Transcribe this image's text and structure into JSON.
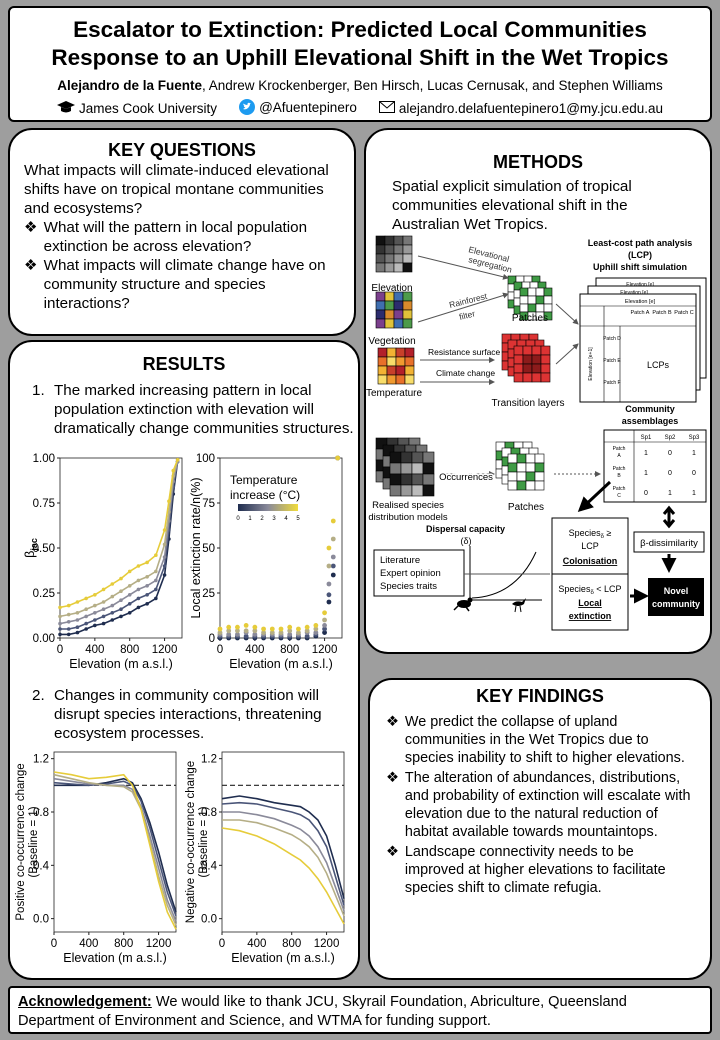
{
  "header": {
    "title_line1": "Escalator to Extinction: Predicted Local Communities",
    "title_line2": "Response to an Uphill Elevational Shift in the Wet Tropics",
    "lead_author": "Alejandro de la Fuente",
    "coauthors": ", Andrew Krockenberger, Ben Hirsch, Lucas Cernusak, and Stephen Williams",
    "university": "James Cook University",
    "twitter": "@Afuentepinero",
    "email": "alejandro.delafuentepinero1@my.jcu.edu.au",
    "icons": [
      "graduation-cap-icon",
      "twitter-bird-icon",
      "envelope-icon"
    ]
  },
  "key_questions": {
    "title": "KEY QUESTIONS",
    "intro": "What impacts will climate-induced elevational shifts have on tropical montane communities and ecosystems?",
    "bullets": [
      "What will the pattern in local population extinction be across elevation?",
      "What impacts will climate change have on community structure and species interactions?"
    ]
  },
  "results": {
    "title": "RESULTS",
    "item1_num": "1.",
    "item1_text": "The marked increasing pattern in local population extinction with elevation will dramatically change communities structures.",
    "item2_num": "2.",
    "item2_text": "Changes in community composition will disrupt species interactions, threatening ecosystem processes."
  },
  "methods": {
    "title": "METHODS",
    "intro": "Spatial explicit simulation of tropical communities elevational shift in the Australian Wet Tropics.",
    "labels": {
      "elevation": "Elevation",
      "vegetation": "Vegetation",
      "temperature": "Temperature",
      "elev_seg_1": "Elevational",
      "elev_seg_2": "segregation",
      "rainforest_1": "Rainforest",
      "rainforest_2": "filter",
      "resistance": "Resistance surface",
      "climate_change": "Climate change",
      "patches": "Patches",
      "transition_layers": "Transition layers",
      "lcp_title_1": "Least-cost path analysis",
      "lcp_title_2": "(LCP)",
      "lcp_title_3": "Uphill shift simulation",
      "elev_e": "Elevation [e]",
      "elev_e1": "Elevation [e+1]",
      "patch_a": "Patch A",
      "patch_b": "Patch B",
      "patch_c": "Patch C",
      "patch_d": "Patch D",
      "patch_e": "Patch E",
      "patch_f": "Patch F",
      "lcps": "LCPs",
      "realised_1": "Realised species",
      "realised_2": "distribution models",
      "occurrences": "Occurrences",
      "patches2": "Patches",
      "comm_1": "Community",
      "comm_2": "assemblages",
      "sp1": "Sp1",
      "sp2": "Sp2",
      "sp3": "Sp3",
      "dispersal": "Dispersal capacity",
      "delta": "(δ)",
      "lit_1": "Literature",
      "lit_2": "Expert opinion",
      "lit_3": "Species traits",
      "col_1": "Species",
      "col_1b": " ≥",
      "col_2": "LCP",
      "col_3": "Colonisation",
      "ext_1": "Species",
      "ext_1b": " < LCP",
      "ext_2": "Local",
      "ext_3": "extinction",
      "sub_delta": "δ",
      "beta": "β-dissimilarity",
      "novel_1": "Novel",
      "novel_2": "community"
    },
    "matrix": [
      [
        "1",
        "0",
        "1"
      ],
      [
        "1",
        "0",
        "0"
      ],
      [
        "0",
        "1",
        "1"
      ]
    ]
  },
  "key_findings": {
    "title": "KEY FINDINGS",
    "bullets": [
      "We predict the collapse of upland communities in the Wet Tropics due to species inability to shift to higher elevations.",
      "The alteration of abundances, distributions, and probability of extinction will escalate with elevation due to the natural reduction of habitat available towards mountaintops.",
      "Landscape connectivity needs to be improved at higher elevations to facilitate species shift to climate refugia."
    ]
  },
  "acknowledgement": {
    "label": "Acknowledgement:",
    "text": " We would like to thank JCU, Skyrail Foundation, Abriculture, Queensland Department of Environment and Science, and WTMA for funding support."
  },
  "chart_data": [
    {
      "type": "line",
      "ylabel": "βjac",
      "xlabel": "Elevation (m a.s.l.)",
      "xlim": [
        0,
        1400
      ],
      "ylim": [
        0,
        1
      ],
      "x_ticks": [
        "0",
        "400",
        "800",
        "1200"
      ],
      "y_ticks": [
        "0.00",
        "0.25",
        "0.50",
        "0.75",
        "1.00"
      ],
      "x": [
        0,
        100,
        200,
        300,
        400,
        500,
        600,
        700,
        800,
        900,
        1000,
        1100,
        1200,
        1250,
        1300,
        1350
      ],
      "series": [
        {
          "color": "#1f2d4f",
          "values": [
            0.02,
            0.02,
            0.03,
            0.05,
            0.07,
            0.08,
            0.1,
            0.12,
            0.14,
            0.17,
            0.19,
            0.22,
            0.35,
            0.55,
            0.8,
            0.98
          ]
        },
        {
          "color": "#4a5578",
          "values": [
            0.05,
            0.05,
            0.06,
            0.08,
            0.1,
            0.12,
            0.14,
            0.16,
            0.19,
            0.22,
            0.24,
            0.27,
            0.4,
            0.6,
            0.84,
            0.98
          ]
        },
        {
          "color": "#8a8a9a",
          "values": [
            0.08,
            0.09,
            0.1,
            0.12,
            0.14,
            0.16,
            0.18,
            0.21,
            0.24,
            0.27,
            0.29,
            0.32,
            0.45,
            0.65,
            0.87,
            0.98
          ]
        },
        {
          "color": "#b5ae86",
          "values": [
            0.12,
            0.13,
            0.14,
            0.16,
            0.18,
            0.2,
            0.23,
            0.26,
            0.29,
            0.32,
            0.34,
            0.37,
            0.52,
            0.7,
            0.9,
            0.99
          ]
        },
        {
          "color": "#e6cc3a",
          "values": [
            0.17,
            0.18,
            0.2,
            0.22,
            0.24,
            0.27,
            0.3,
            0.33,
            0.37,
            0.4,
            0.42,
            0.46,
            0.6,
            0.76,
            0.93,
            0.99
          ]
        }
      ],
      "legend_title": "Temperature increase (°C)",
      "legend_ticks": [
        "0",
        "1",
        "2",
        "3",
        "4",
        "5"
      ]
    },
    {
      "type": "scatter",
      "ylabel": "Local extinction rate/n(%)",
      "xlabel": "Elevation (m a.s.l.)",
      "xlim": [
        0,
        1400
      ],
      "ylim": [
        0,
        100
      ],
      "x_ticks": [
        "0",
        "400",
        "800",
        "1200"
      ],
      "y_ticks": [
        "0",
        "25",
        "50",
        "75",
        "100"
      ],
      "x": [
        0,
        100,
        200,
        300,
        400,
        500,
        600,
        700,
        800,
        900,
        1000,
        1100,
        1200,
        1250,
        1300,
        1350
      ],
      "series": [
        {
          "color": "#1f2d4f",
          "values": [
            0,
            0,
            0,
            0,
            0,
            0,
            0,
            0,
            0,
            0,
            0,
            1,
            3,
            20,
            35,
            100
          ]
        },
        {
          "color": "#4a5578",
          "values": [
            1,
            1,
            1,
            1,
            1,
            1,
            1,
            1,
            1,
            1,
            1,
            2,
            5,
            24,
            40,
            100
          ]
        },
        {
          "color": "#8a8a9a",
          "values": [
            2,
            2,
            2,
            3,
            2,
            2,
            2,
            2,
            2,
            2,
            3,
            3,
            7,
            30,
            45,
            100
          ]
        },
        {
          "color": "#b5ae86",
          "values": [
            3,
            4,
            4,
            4,
            4,
            3,
            3,
            3,
            4,
            3,
            4,
            5,
            10,
            40,
            55,
            100
          ]
        },
        {
          "color": "#e6cc3a",
          "values": [
            5,
            6,
            6,
            7,
            6,
            5,
            5,
            5,
            6,
            5,
            6,
            7,
            14,
            50,
            65,
            100
          ]
        }
      ]
    },
    {
      "type": "line",
      "ylabel": "Positive co-occurrence change (Baseline = 1)",
      "xlabel": "Elevation (m a.s.l.)",
      "xlim": [
        0,
        1400
      ],
      "ylim": [
        -0.1,
        1.25
      ],
      "baseline": 1,
      "x_ticks": [
        "0",
        "400",
        "800",
        "1200"
      ],
      "y_ticks": [
        "0.0",
        "0.4",
        "0.8",
        "1.2"
      ],
      "x": [
        0,
        200,
        400,
        600,
        800,
        900,
        1000,
        1100,
        1200,
        1300,
        1400
      ],
      "series": [
        {
          "color": "#1f2d4f",
          "values": [
            1.0,
            1.0,
            1.0,
            1.02,
            1.05,
            1.02,
            0.9,
            0.72,
            0.5,
            0.25,
            0.05
          ]
        },
        {
          "color": "#4a5578",
          "values": [
            1.02,
            1.01,
            1.0,
            1.01,
            1.03,
            1.0,
            0.88,
            0.68,
            0.44,
            0.2,
            0.02
          ]
        },
        {
          "color": "#8a8a9a",
          "values": [
            1.05,
            1.03,
            1.01,
            1.0,
            1.0,
            0.97,
            0.84,
            0.62,
            0.38,
            0.14,
            -0.02
          ]
        },
        {
          "color": "#b5ae86",
          "values": [
            1.08,
            1.05,
            1.02,
            1.0,
            0.99,
            0.95,
            0.82,
            0.58,
            0.32,
            0.1,
            -0.05
          ]
        },
        {
          "color": "#e6cc3a",
          "values": [
            1.1,
            1.08,
            1.05,
            1.06,
            1.08,
            1.0,
            0.82,
            0.55,
            0.28,
            0.05,
            -0.08
          ]
        }
      ]
    },
    {
      "type": "line",
      "ylabel": "Negative co-occurrence change (Baseline = 1)",
      "xlabel": "Elevation (m a.s.l.)",
      "xlim": [
        0,
        1400
      ],
      "ylim": [
        -0.1,
        1.25
      ],
      "baseline": 1,
      "x_ticks": [
        "0",
        "400",
        "800",
        "1200"
      ],
      "y_ticks": [
        "0.0",
        "0.4",
        "0.8",
        "1.2"
      ],
      "x": [
        0,
        200,
        400,
        600,
        800,
        900,
        1000,
        1100,
        1200,
        1300,
        1400
      ],
      "series": [
        {
          "color": "#1f2d4f",
          "values": [
            0.9,
            0.92,
            0.9,
            0.87,
            0.85,
            0.84,
            0.8,
            0.74,
            0.62,
            0.4,
            0.15
          ]
        },
        {
          "color": "#4a5578",
          "values": [
            0.86,
            0.87,
            0.86,
            0.83,
            0.8,
            0.78,
            0.74,
            0.66,
            0.54,
            0.32,
            0.1
          ]
        },
        {
          "color": "#8a8a9a",
          "values": [
            0.8,
            0.8,
            0.78,
            0.75,
            0.7,
            0.67,
            0.62,
            0.54,
            0.42,
            0.24,
            0.06
          ]
        },
        {
          "color": "#b5ae86",
          "values": [
            0.74,
            0.74,
            0.72,
            0.68,
            0.63,
            0.59,
            0.54,
            0.46,
            0.34,
            0.18,
            0.02
          ]
        },
        {
          "color": "#e6cc3a",
          "values": [
            0.68,
            0.66,
            0.62,
            0.56,
            0.48,
            0.44,
            0.38,
            0.3,
            0.2,
            0.08,
            -0.04
          ]
        }
      ]
    }
  ]
}
